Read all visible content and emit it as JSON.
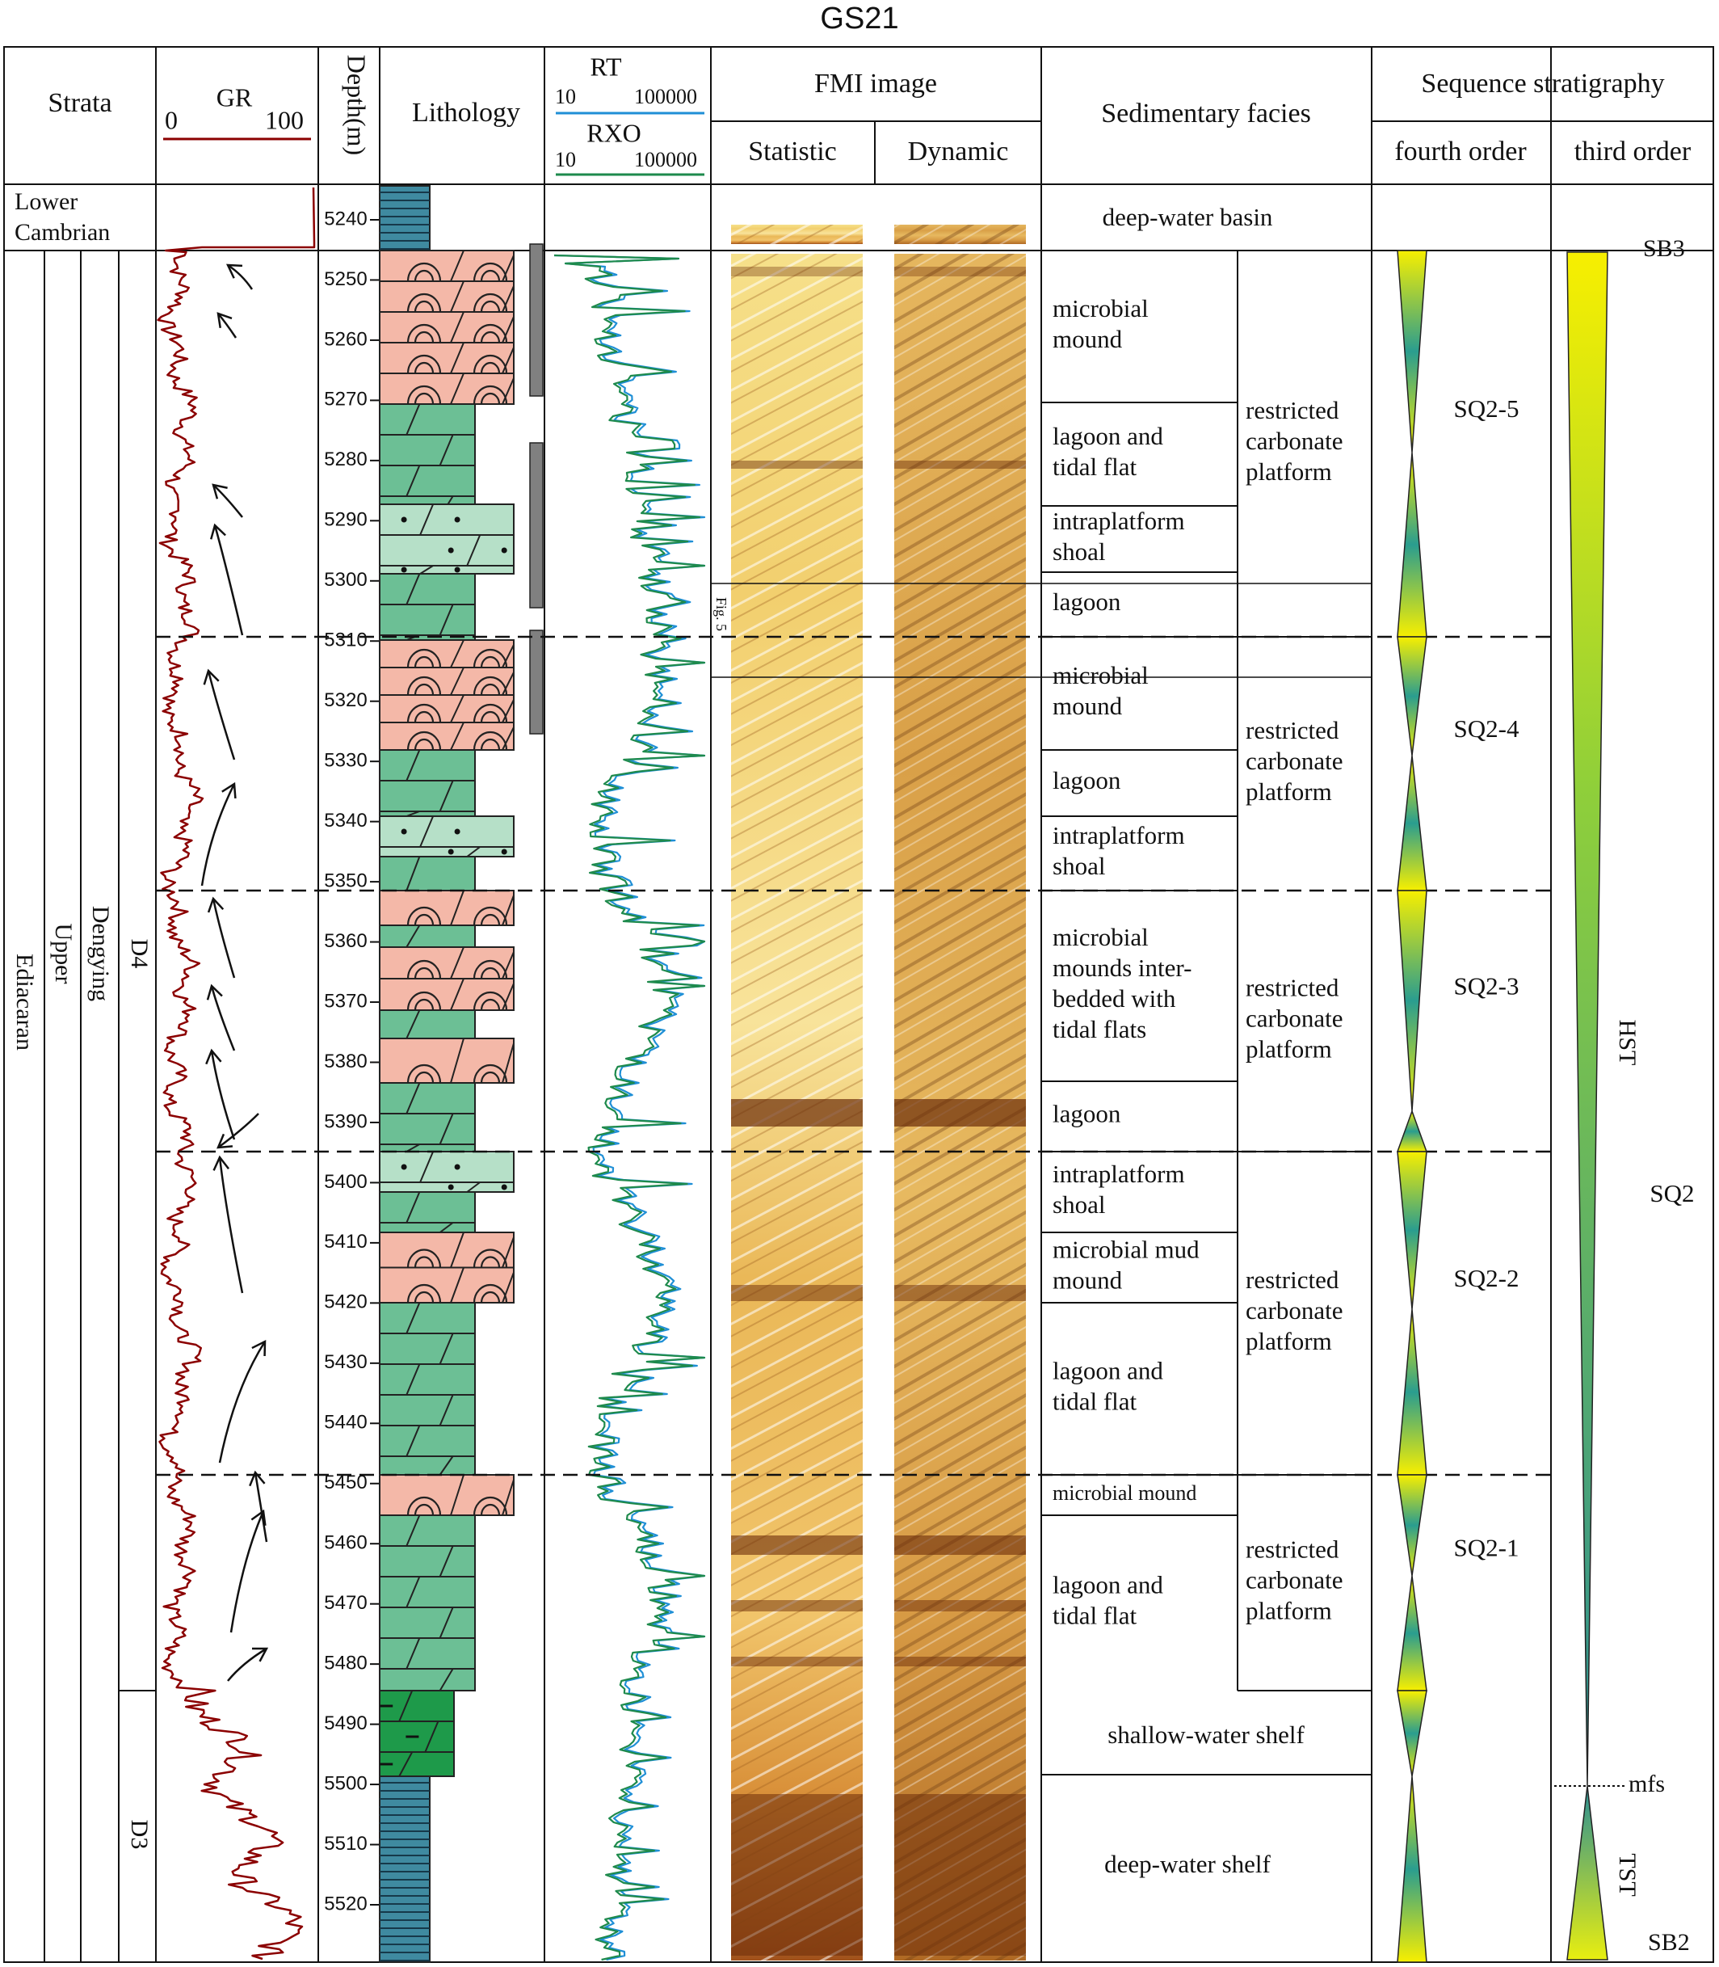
{
  "title": "GS21",
  "colors": {
    "gr": "#8b0000",
    "rt": "#1f8fd6",
    "rxo": "#1e8a4c",
    "mound": "#f4b8a8",
    "dolomite": "#6cbf95",
    "grain_dolomite": "#b6e0c8",
    "shelf_dolomite": "#1e9a4a",
    "shale": "#3f8aa0",
    "seq_top": "#f5ee00",
    "seq_mid": "#2a9d8f",
    "seq_bottom": "#d8ea1a"
  },
  "headers": {
    "strata": "Strata",
    "gr_label": "GR",
    "gr_min": "0",
    "gr_max": "100",
    "depth": "Depth(m)",
    "lithology": "Lithology",
    "rt_label": "RT",
    "rt_min": "10",
    "rt_max": "100000",
    "rxo_label": "RXO",
    "rxo_min": "10",
    "rxo_max": "100000",
    "fmi": "FMI image",
    "fmi_static": "Statistic",
    "fmi_dynamic": "Dynamic",
    "facies": "Sedimentary facies",
    "sequence": "Sequence stratigraphy",
    "fourth_order": "fourth order",
    "third_order": "third order"
  },
  "strata": {
    "lower_cambrian": [
      "Lower",
      "Cambrian"
    ],
    "ediacaran": "Ediacaran",
    "upper": "Upper",
    "dengying": "Dengying",
    "d4": "D4",
    "d3": "D3"
  },
  "depth_ticks": [
    5240,
    5250,
    5260,
    5270,
    5280,
    5290,
    5300,
    5310,
    5320,
    5330,
    5340,
    5350,
    5360,
    5370,
    5380,
    5390,
    5400,
    5410,
    5420,
    5430,
    5440,
    5450,
    5460,
    5470,
    5480,
    5490,
    5500,
    5510,
    5520
  ],
  "fmi_marker": "Fig. 5",
  "facies": {
    "cambrian": "deep-water basin",
    "subfacies": [
      [
        "microbial",
        "mound"
      ],
      [
        "lagoon and",
        "tidal flat"
      ],
      [
        "intraplatform",
        "shoal"
      ],
      [
        "lagoon"
      ],
      [
        "microbial",
        "mound"
      ],
      [
        "lagoon"
      ],
      [
        "intraplatform",
        "shoal"
      ],
      [
        "microbial",
        "mounds inter-",
        "bedded with",
        "tidal flats"
      ],
      [
        "lagoon"
      ],
      [
        "intraplatform",
        "shoal"
      ],
      [
        "microbial mud",
        "mound"
      ],
      [
        "lagoon and",
        "tidal flat"
      ],
      [
        "microbial mound"
      ],
      [
        "lagoon and",
        "tidal flat"
      ]
    ],
    "platform": [
      "restricted",
      "carbonate",
      "platform"
    ],
    "shallow_shelf": "shallow-water shelf",
    "deep_shelf": "deep-water shelf"
  },
  "sequences": {
    "fourth_order": [
      "SQ2-5",
      "SQ2-4",
      "SQ2-3",
      "SQ2-2",
      "SQ2-1"
    ],
    "third_order": "SQ2",
    "hst": "HST",
    "tst": "TST",
    "sb3": "SB3",
    "sb2": "SB2",
    "mfs": "mfs"
  }
}
